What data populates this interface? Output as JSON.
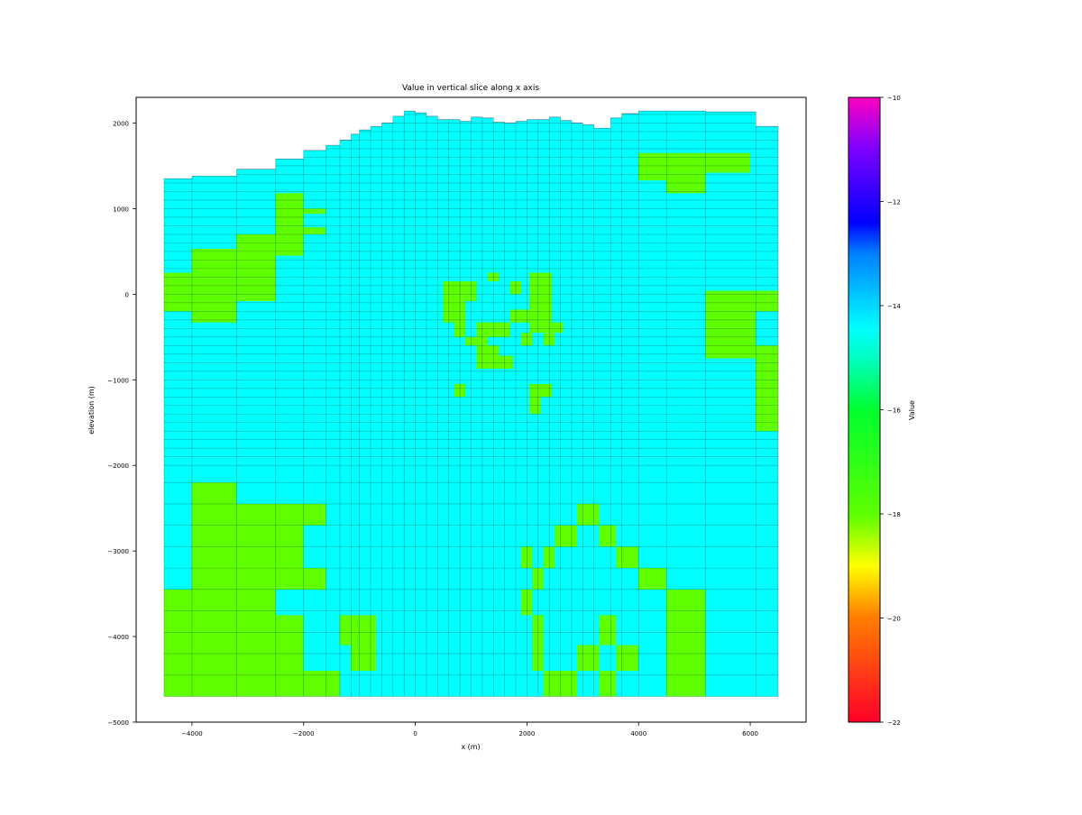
{
  "chart_data": {
    "type": "heatmap",
    "title": "Value in vertical slice along x axis",
    "xlabel": "x (m)",
    "ylabel": "elevation (m)",
    "xlim": [
      -5000,
      7000
    ],
    "ylim": [
      -5000,
      2300
    ],
    "xticks": [
      -4000,
      -2000,
      0,
      2000,
      4000,
      6000
    ],
    "xtick_labels": [
      "−4000",
      "−2000",
      "0",
      "2000",
      "4000",
      "6000"
    ],
    "yticks": [
      2000,
      1000,
      0,
      -1000,
      -2000,
      -3000,
      -4000,
      -5000
    ],
    "ytick_labels": [
      "2000",
      "1000",
      "0",
      "−1000",
      "−2000",
      "−3000",
      "−4000",
      "−5000"
    ],
    "colorbar": {
      "label": "Value",
      "range": [
        -22,
        -10
      ],
      "ticks": [
        -10,
        -12,
        -14,
        -16,
        -18,
        -20,
        -22
      ],
      "tick_labels": [
        "−10",
        "−12",
        "−14",
        "−16",
        "−18",
        "−20",
        "−22"
      ],
      "colormap": "gist_rainbow"
    },
    "categories": [
      {
        "name": "background",
        "value": -15,
        "color": "#00ffff"
      },
      {
        "name": "zone",
        "value": -18,
        "color": "#5fff00"
      }
    ],
    "columns_x": [
      -4500,
      -4000,
      -3200,
      -2500,
      -2000,
      -1600,
      -1350,
      -1150,
      -1000,
      -800,
      -600,
      -400,
      -200,
      0,
      200,
      400,
      600,
      800,
      1000,
      1200,
      1400,
      1600,
      1800,
      2000,
      2200,
      2400,
      2600,
      2800,
      3000,
      3200,
      3500,
      3700,
      4000,
      4500,
      5200,
      6100,
      6500
    ],
    "top_elevation": [
      1350,
      1380,
      1460,
      1580,
      1680,
      1740,
      1800,
      1870,
      1920,
      1960,
      2000,
      2080,
      2140,
      2120,
      2080,
      2040,
      2040,
      2020,
      2070,
      2060,
      2010,
      2000,
      2020,
      2040,
      2040,
      2070,
      2030,
      2000,
      1980,
      1940,
      2060,
      2110,
      2140,
      2140,
      2130,
      1960
    ],
    "bottom_elevation": -4700,
    "zones": [
      {
        "x": [
          -4500,
          -4000
        ],
        "y": [
          -200,
          250
        ]
      },
      {
        "x": [
          -4000,
          -3200
        ],
        "y": [
          -330,
          530
        ]
      },
      {
        "x": [
          -3200,
          -2500
        ],
        "y": [
          -80,
          700
        ]
      },
      {
        "x": [
          -2500,
          -2000
        ],
        "y": [
          450,
          1180
        ]
      },
      {
        "x": [
          -2000,
          -1600
        ],
        "y": [
          940,
          1000
        ]
      },
      {
        "x": [
          -2000,
          -1600
        ],
        "y": [
          700,
          780
        ]
      },
      {
        "x": [
          500,
          900
        ],
        "y": [
          -330,
          150
        ]
      },
      {
        "x": [
          900,
          1100
        ],
        "y": [
          -80,
          150
        ]
      },
      {
        "x": [
          1300,
          1500
        ],
        "y": [
          150,
          250
        ]
      },
      {
        "x": [
          1700,
          1900
        ],
        "y": [
          0,
          150
        ]
      },
      {
        "x": [
          2050,
          2450
        ],
        "y": [
          -450,
          250
        ]
      },
      {
        "x": [
          1700,
          2050
        ],
        "y": [
          -330,
          -180
        ]
      },
      {
        "x": [
          1100,
          1700
        ],
        "y": [
          -500,
          -330
        ]
      },
      {
        "x": [
          700,
          900
        ],
        "y": [
          -500,
          -330
        ]
      },
      {
        "x": [
          900,
          1300
        ],
        "y": [
          -600,
          -500
        ]
      },
      {
        "x": [
          1100,
          1500
        ],
        "y": [
          -870,
          -600
        ]
      },
      {
        "x": [
          1500,
          1750
        ],
        "y": [
          -870,
          -720
        ]
      },
      {
        "x": [
          1900,
          2100
        ],
        "y": [
          -600,
          -450
        ]
      },
      {
        "x": [
          2300,
          2500
        ],
        "y": [
          -600,
          -450
        ]
      },
      {
        "x": [
          2450,
          2650
        ],
        "y": [
          -450,
          -330
        ]
      },
      {
        "x": [
          700,
          900
        ],
        "y": [
          -1200,
          -1050
        ]
      },
      {
        "x": [
          2050,
          2450
        ],
        "y": [
          -1200,
          -1050
        ]
      },
      {
        "x": [
          2050,
          2250
        ],
        "y": [
          -1400,
          -1200
        ]
      },
      {
        "x": [
          4000,
          6000
        ],
        "y": [
          1420,
          1650
        ]
      },
      {
        "x": [
          4000,
          4500
        ],
        "y": [
          1330,
          1420
        ]
      },
      {
        "x": [
          4500,
          5200
        ],
        "y": [
          1180,
          1420
        ]
      },
      {
        "x": [
          5200,
          6100
        ],
        "y": [
          -750,
          40
        ]
      },
      {
        "x": [
          6100,
          6500
        ],
        "y": [
          -200,
          40
        ]
      },
      {
        "x": [
          6100,
          6500
        ],
        "y": [
          -1600,
          -600
        ]
      },
      {
        "x": [
          -4000,
          -3200
        ],
        "y": [
          -2450,
          -2200
        ]
      },
      {
        "x": [
          -4000,
          -2000
        ],
        "y": [
          -3450,
          -2450
        ]
      },
      {
        "x": [
          -2000,
          -1600
        ],
        "y": [
          -2700,
          -2450
        ]
      },
      {
        "x": [
          -2000,
          -1600
        ],
        "y": [
          -3450,
          -3200
        ]
      },
      {
        "x": [
          -4500,
          -2500
        ],
        "y": [
          -4700,
          -3450
        ]
      },
      {
        "x": [
          -2500,
          -2000
        ],
        "y": [
          -4700,
          -3750
        ]
      },
      {
        "x": [
          -2000,
          -1350
        ],
        "y": [
          -4700,
          -4400
        ]
      },
      {
        "x": [
          -1350,
          -700
        ],
        "y": [
          -4100,
          -3750
        ]
      },
      {
        "x": [
          -1150,
          -700
        ],
        "y": [
          -4400,
          -4100
        ]
      },
      {
        "x": [
          1900,
          2100
        ],
        "y": [
          -3200,
          -2950
        ]
      },
      {
        "x": [
          2300,
          2500
        ],
        "y": [
          -3200,
          -2950
        ]
      },
      {
        "x": [
          2100,
          2300
        ],
        "y": [
          -3450,
          -3200
        ]
      },
      {
        "x": [
          1900,
          2100
        ],
        "y": [
          -3750,
          -3450
        ]
      },
      {
        "x": [
          2100,
          2300
        ],
        "y": [
          -4400,
          -3750
        ]
      },
      {
        "x": [
          2500,
          2900
        ],
        "y": [
          -2950,
          -2700
        ]
      },
      {
        "x": [
          2900,
          3300
        ],
        "y": [
          -2700,
          -2450
        ]
      },
      {
        "x": [
          3300,
          3600
        ],
        "y": [
          -2950,
          -2700
        ]
      },
      {
        "x": [
          3600,
          4000
        ],
        "y": [
          -3200,
          -2950
        ]
      },
      {
        "x": [
          4000,
          4500
        ],
        "y": [
          -3450,
          -3200
        ]
      },
      {
        "x": [
          3300,
          3600
        ],
        "y": [
          -4100,
          -3750
        ]
      },
      {
        "x": [
          3600,
          4000
        ],
        "y": [
          -4400,
          -4100
        ]
      },
      {
        "x": [
          2900,
          3300
        ],
        "y": [
          -4400,
          -4100
        ]
      },
      {
        "x": [
          2300,
          2900
        ],
        "y": [
          -4700,
          -4400
        ]
      },
      {
        "x": [
          3300,
          3600
        ],
        "y": [
          -4700,
          -4400
        ]
      },
      {
        "x": [
          4500,
          5200
        ],
        "y": [
          -4700,
          -3450
        ]
      }
    ]
  }
}
